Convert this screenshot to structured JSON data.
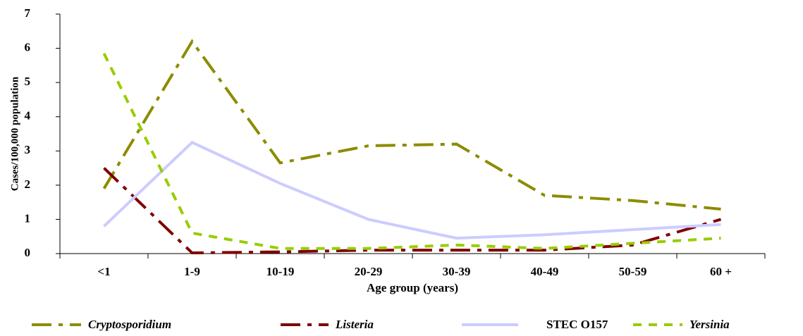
{
  "chart_data": {
    "type": "line",
    "x_label": "Age group (years)",
    "y_label": "Cases/100,000 population",
    "categories": [
      "<1",
      "1-9",
      "10-19",
      "20-29",
      "30-39",
      "40-49",
      "50-59",
      "60 +"
    ],
    "series": [
      {
        "name": "Cryptosporidium",
        "color": "#8c8c00",
        "values": [
          1.9,
          6.2,
          2.65,
          3.15,
          3.2,
          1.7,
          1.55,
          1.3
        ]
      },
      {
        "name": "Listeria",
        "color": "#800000",
        "values": [
          2.5,
          0.02,
          0.05,
          0.1,
          0.1,
          0.1,
          0.25,
          1.0
        ]
      },
      {
        "name": "STEC O157",
        "color": "#ccccff",
        "values": [
          0.8,
          3.25,
          2.05,
          1.0,
          0.45,
          0.55,
          0.7,
          0.85
        ]
      },
      {
        "name": "Yersinia",
        "color": "#99cc00",
        "values": [
          5.85,
          0.6,
          0.15,
          0.15,
          0.25,
          0.15,
          0.3,
          0.45
        ]
      }
    ],
    "ylim": [
      0,
      7
    ],
    "yticks": [
      0,
      1,
      2,
      3,
      4,
      5,
      6,
      7
    ],
    "grid": false
  }
}
